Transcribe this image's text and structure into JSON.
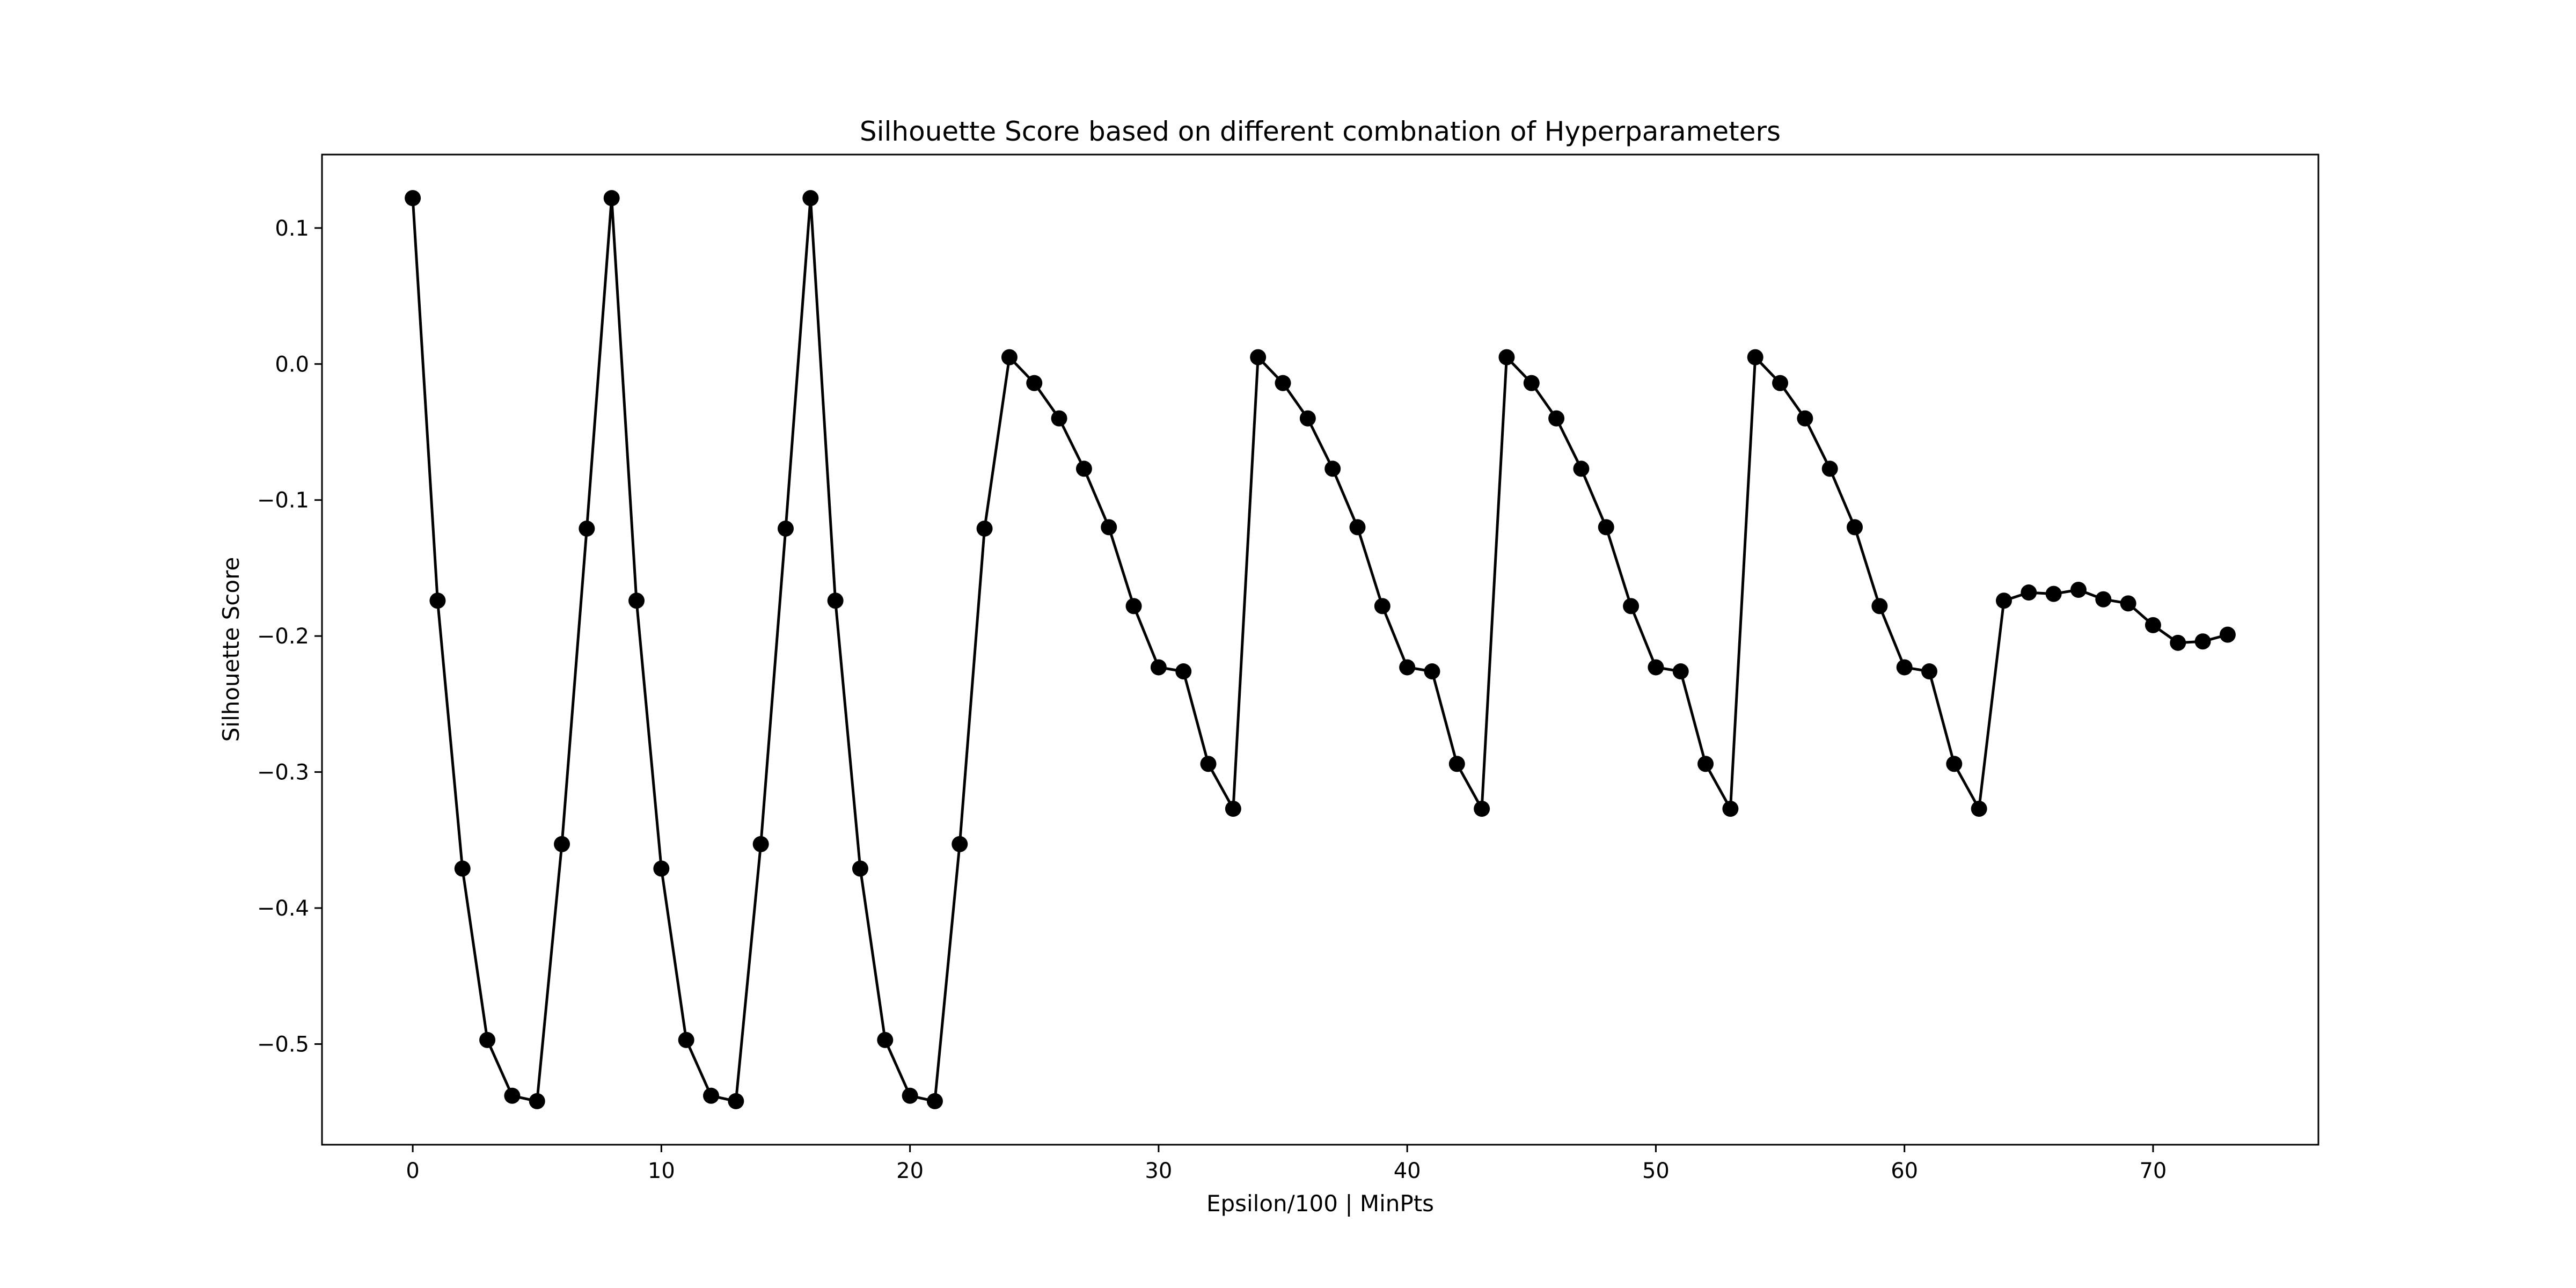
{
  "chart_data": {
    "type": "line",
    "title": "Silhouette Score based on different combnation of Hyperparameters",
    "xlabel": "Epsilon/100 | MinPts",
    "ylabel": "Silhouette Score",
    "xlim": [
      -3.65,
      76.65
    ],
    "ylim": [
      -0.574,
      0.154
    ],
    "xticks": [
      0,
      10,
      20,
      30,
      40,
      50,
      60,
      70
    ],
    "yticks": [
      0.1,
      0.0,
      -0.1,
      -0.2,
      -0.3,
      -0.4,
      -0.5
    ],
    "ytick_labels": [
      "0.1",
      "0.0",
      "−0.1",
      "−0.2",
      "−0.3",
      "−0.4",
      "−0.5"
    ],
    "grid": false,
    "marker": "circle",
    "line_color": "#000000",
    "series": [
      {
        "x": [
          0,
          1,
          2,
          3,
          4,
          5,
          6,
          7,
          8,
          9,
          10,
          11,
          12,
          13,
          14,
          15,
          16,
          17,
          18,
          19,
          20,
          21,
          22,
          23,
          24,
          25,
          26,
          27,
          28,
          29,
          30,
          31,
          32,
          33,
          34,
          35,
          36,
          37,
          38,
          39,
          40,
          41,
          42,
          43,
          44,
          45,
          46,
          47,
          48,
          49,
          50,
          51,
          52,
          53,
          54,
          55,
          56,
          57,
          58,
          59,
          60,
          61,
          62,
          63,
          64,
          65,
          66,
          67,
          68,
          69,
          70,
          71,
          72,
          73
        ],
        "values": [
          0.122,
          -0.174,
          -0.371,
          -0.497,
          -0.538,
          -0.542,
          -0.353,
          -0.121,
          0.122,
          -0.174,
          -0.371,
          -0.497,
          -0.538,
          -0.542,
          -0.353,
          -0.121,
          0.122,
          -0.174,
          -0.371,
          -0.497,
          -0.538,
          -0.542,
          -0.353,
          -0.121,
          0.005,
          -0.014,
          -0.04,
          -0.077,
          -0.12,
          -0.178,
          -0.223,
          -0.226,
          -0.294,
          -0.327,
          0.005,
          -0.014,
          -0.04,
          -0.077,
          -0.12,
          -0.178,
          -0.223,
          -0.226,
          -0.294,
          -0.327,
          0.005,
          -0.014,
          -0.04,
          -0.077,
          -0.12,
          -0.178,
          -0.223,
          -0.226,
          -0.294,
          -0.327,
          0.005,
          -0.014,
          -0.04,
          -0.077,
          -0.12,
          -0.178,
          -0.223,
          -0.226,
          -0.294,
          -0.327,
          -0.174,
          -0.168,
          -0.169,
          -0.166,
          -0.173,
          -0.176,
          -0.192,
          -0.205,
          -0.204,
          -0.199
        ]
      }
    ]
  }
}
